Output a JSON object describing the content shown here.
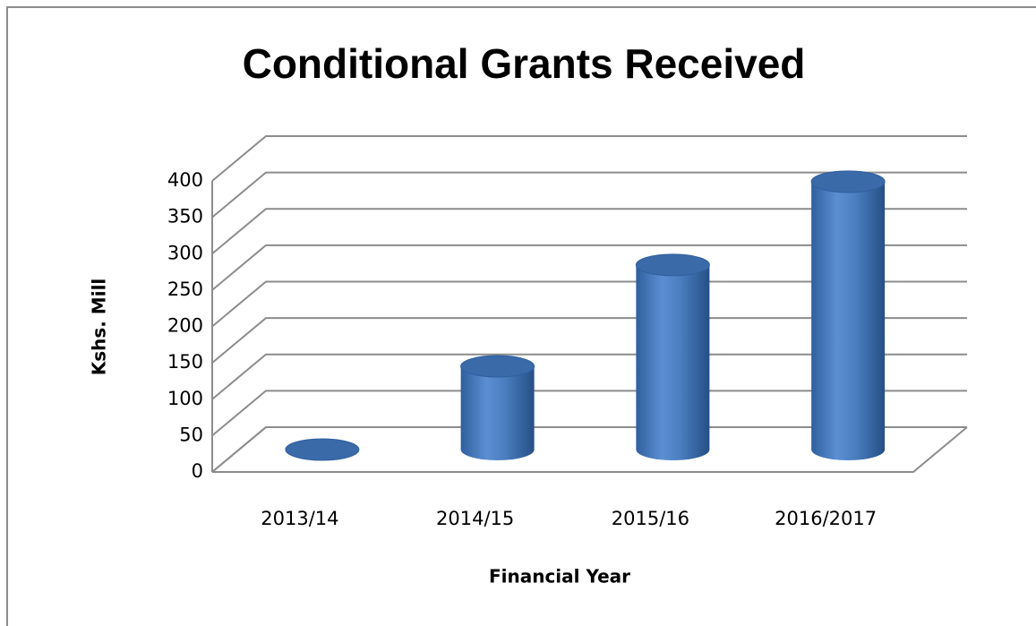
{
  "chart_data": {
    "type": "bar3d",
    "title": "Conditional Grants Received",
    "x_label": "Financial Year",
    "y_label": "Kshs. Mill",
    "categories": [
      "2013/14",
      "2014/15",
      "2015/16",
      "2016/2017"
    ],
    "values": [
      0,
      115,
      255,
      370
    ],
    "color": "#4a7ebf",
    "ylim": [
      0,
      400
    ],
    "yticks": [
      0,
      50,
      100,
      150,
      200,
      250,
      300,
      350,
      400
    ],
    "grid": true
  }
}
